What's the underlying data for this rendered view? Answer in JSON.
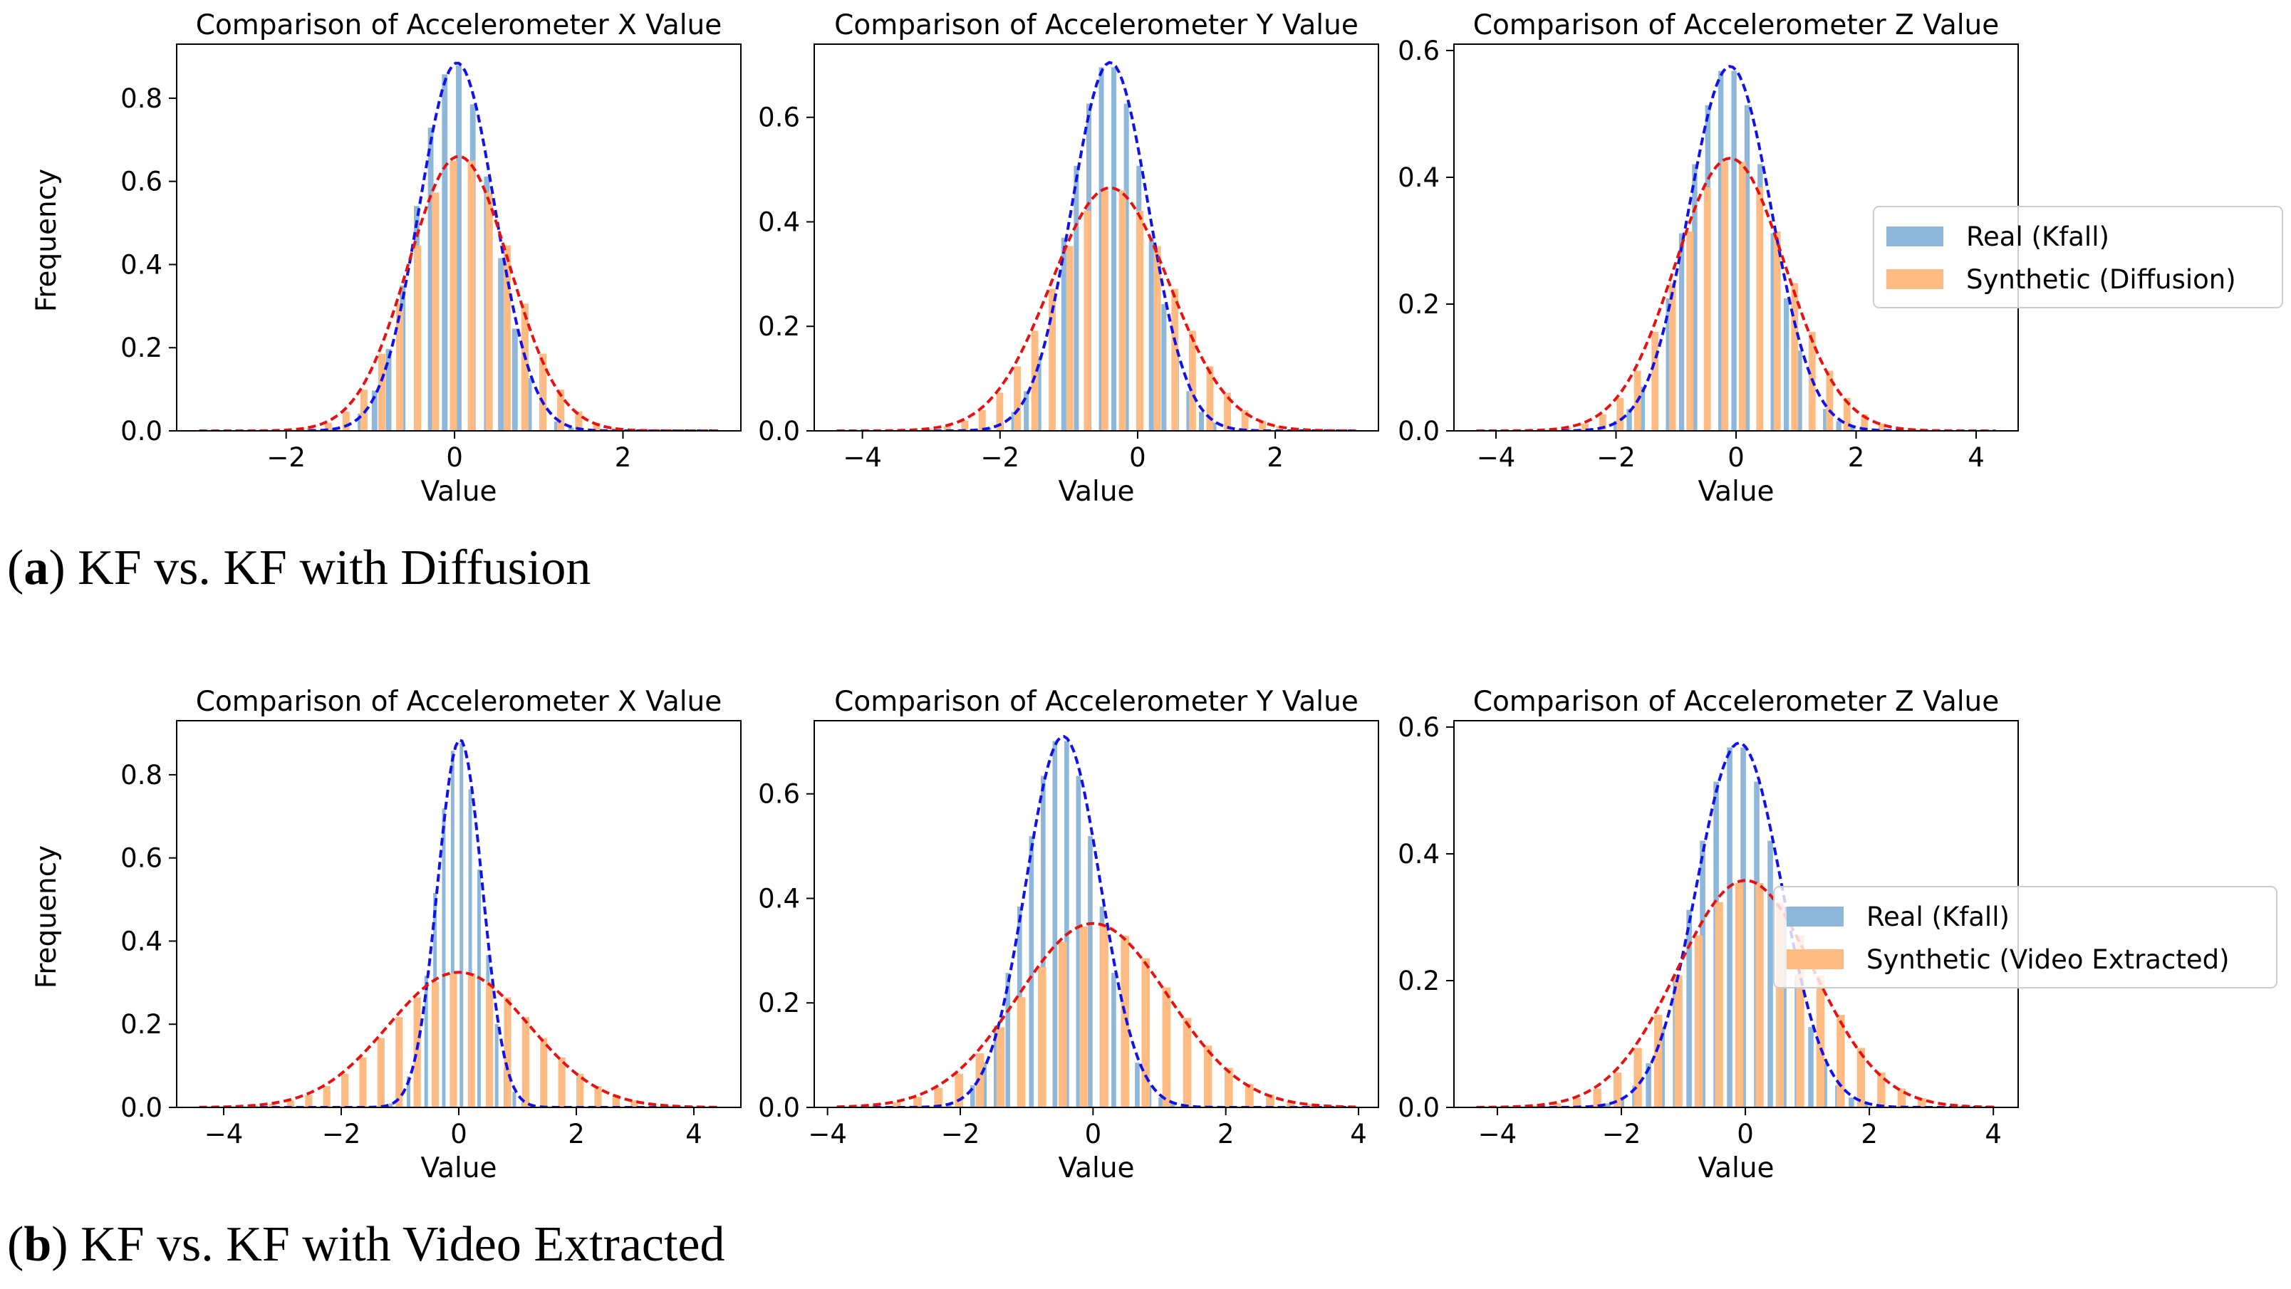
{
  "colors": {
    "real_bar": "#8fb7d9",
    "synthetic_bar": "#ffbb84",
    "real_curve": "#1212e6",
    "synthetic_curve": "#e61212"
  },
  "captions": [
    {
      "label": "a",
      "text": "KF vs. KF with Diffusion"
    },
    {
      "label": "b",
      "text": "KF vs. KF with Video Extracted"
    }
  ],
  "chart_data": [
    {
      "row": 0,
      "col": 0,
      "type": "bar",
      "title": "Comparison of Accelerometer X Value",
      "xlabel": "Value",
      "ylabel": "Frequency",
      "xlim": [
        -3.3,
        3.4
      ],
      "ylim": [
        0,
        0.93
      ],
      "xticks": [
        -2,
        0,
        2
      ],
      "yticks": [
        0.0,
        0.2,
        0.4,
        0.6,
        0.8
      ],
      "series": [
        {
          "name": "Real (Kfall)",
          "mu": 0.03,
          "sigma": 0.45,
          "peak": 0.885,
          "hist_range": [
            -2.0,
            2.0
          ],
          "bins": 24
        },
        {
          "name": "Synthetic (Diffusion)",
          "mu": 0.05,
          "sigma": 0.6,
          "peak": 0.66,
          "hist_range": [
            -2.5,
            2.6
          ],
          "bins": 24
        }
      ]
    },
    {
      "row": 0,
      "col": 1,
      "type": "bar",
      "title": "Comparison of Accelerometer Y Value",
      "xlabel": "Value",
      "ylabel": "",
      "xlim": [
        -4.7,
        3.5
      ],
      "ylim": [
        0,
        0.74
      ],
      "xticks": [
        -4,
        -2,
        0,
        2
      ],
      "yticks": [
        0.0,
        0.2,
        0.4,
        0.6
      ],
      "series": [
        {
          "name": "Real (Kfall)",
          "mu": -0.4,
          "sigma": 0.56,
          "peak": 0.705,
          "hist_range": [
            -2.4,
            1.6
          ],
          "bins": 22
        },
        {
          "name": "Synthetic (Diffusion)",
          "mu": -0.4,
          "sigma": 0.86,
          "peak": 0.465,
          "hist_range": [
            -3.2,
            2.4
          ],
          "bins": 22
        }
      ]
    },
    {
      "row": 0,
      "col": 2,
      "type": "bar",
      "title": "Comparison of Accelerometer Z Value",
      "xlabel": "Value",
      "ylabel": "",
      "xlim": [
        -4.7,
        4.7
      ],
      "ylim": [
        0,
        0.61
      ],
      "xticks": [
        -4,
        -2,
        0,
        2,
        4
      ],
      "yticks": [
        0.0,
        0.2,
        0.4,
        0.6
      ],
      "series": [
        {
          "name": "Real (Kfall)",
          "mu": -0.1,
          "sigma": 0.69,
          "peak": 0.575,
          "hist_range": [
            -2.5,
            2.3
          ],
          "bins": 22
        },
        {
          "name": "Synthetic (Diffusion)",
          "mu": -0.1,
          "sigma": 0.92,
          "peak": 0.43,
          "hist_range": [
            -3.3,
            3.1
          ],
          "bins": 22
        }
      ],
      "legend": {
        "entries": [
          "Real (Kfall)",
          "Synthetic (Diffusion)"
        ],
        "placement": "right"
      }
    },
    {
      "row": 1,
      "col": 0,
      "type": "bar",
      "title": "Comparison of Accelerometer X Value",
      "xlabel": "Value",
      "ylabel": "Frequency",
      "xlim": [
        -4.8,
        4.8
      ],
      "ylim": [
        0,
        0.93
      ],
      "xticks": [
        -4,
        -2,
        0,
        2,
        4
      ],
      "yticks": [
        0.0,
        0.2,
        0.4,
        0.6,
        0.8
      ],
      "series": [
        {
          "name": "Real (Kfall)",
          "mu": 0.02,
          "sigma": 0.38,
          "peak": 0.885,
          "hist_range": [
            -1.8,
            1.8
          ],
          "bins": 24
        },
        {
          "name": "Synthetic (Video Extracted)",
          "mu": 0.0,
          "sigma": 1.2,
          "peak": 0.325,
          "hist_range": [
            -4.0,
            4.0
          ],
          "bins": 26
        }
      ]
    },
    {
      "row": 1,
      "col": 1,
      "type": "bar",
      "title": "Comparison of Accelerometer Y Value",
      "xlabel": "Value",
      "ylabel": "",
      "xlim": [
        -4.2,
        4.3
      ],
      "ylim": [
        0,
        0.74
      ],
      "xticks": [
        -4,
        -2,
        0,
        2,
        4
      ],
      "yticks": [
        0.0,
        0.2,
        0.4,
        0.6
      ],
      "series": [
        {
          "name": "Real (Kfall)",
          "mu": -0.45,
          "sigma": 0.56,
          "peak": 0.71,
          "hist_range": [
            -2.4,
            1.5
          ],
          "bins": 22
        },
        {
          "name": "Synthetic (Video Extracted)",
          "mu": 0.0,
          "sigma": 1.13,
          "peak": 0.352,
          "hist_range": [
            -3.8,
            3.7
          ],
          "bins": 24
        }
      ]
    },
    {
      "row": 1,
      "col": 2,
      "type": "bar",
      "title": "Comparison of Accelerometer Z Value",
      "xlabel": "Value",
      "ylabel": "",
      "xlim": [
        -4.7,
        4.4
      ],
      "ylim": [
        0,
        0.61
      ],
      "xticks": [
        -4,
        -2,
        0,
        2,
        4
      ],
      "yticks": [
        0.0,
        0.2,
        0.4,
        0.6
      ],
      "series": [
        {
          "name": "Real (Kfall)",
          "mu": -0.1,
          "sigma": 0.69,
          "peak": 0.575,
          "hist_range": [
            -2.5,
            2.3
          ],
          "bins": 22
        },
        {
          "name": "Synthetic (Video Extracted)",
          "mu": 0.0,
          "sigma": 1.1,
          "peak": 0.358,
          "hist_range": [
            -3.6,
            3.6
          ],
          "bins": 22
        }
      ],
      "legend": {
        "entries": [
          "Real (Kfall)",
          "Synthetic (Video Extracted)"
        ],
        "placement": "right"
      }
    }
  ]
}
